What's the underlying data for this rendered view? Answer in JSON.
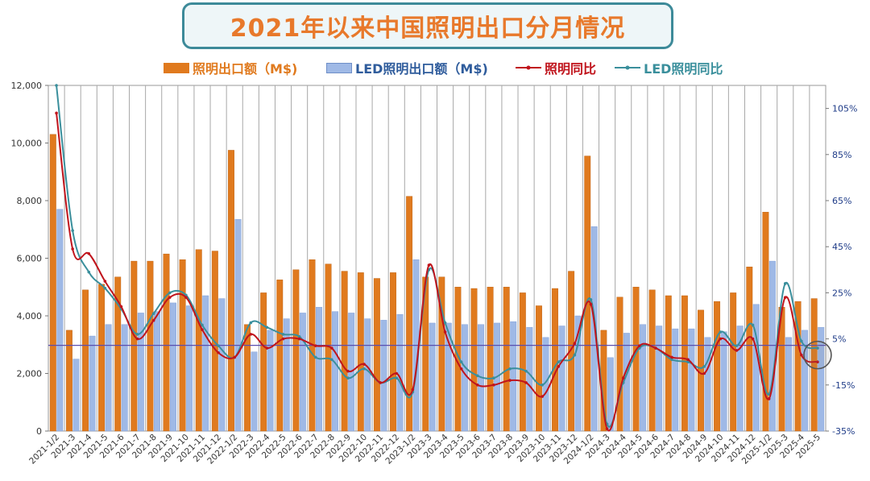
{
  "title": "2021年以来中国照明出口分月情况",
  "legend": {
    "s1": "照明出口额（M$)",
    "s2": "LED照明出口额（M$)",
    "s3": "照明同比",
    "s4": "LED照明同比"
  },
  "colors": {
    "bar1": "#e07a1e",
    "bar2": "#9fb9e6",
    "line1": "#c0141c",
    "line2": "#3a8f9c",
    "refline": "#5b4fb0",
    "title_border": "#3d8a99",
    "title_text": "#e8792b"
  },
  "chart_data": {
    "type": "bar",
    "categories": [
      "2021-1/2",
      "2021-3",
      "2021-4",
      "2021-5",
      "2021-6",
      "2021-7",
      "2021-8",
      "2021-9",
      "2021-10",
      "2021-11",
      "2021-12",
      "2022-1/2",
      "2022-3",
      "2022-4",
      "2022-5",
      "2022-6",
      "2022-7",
      "2022-8",
      "2022-9",
      "2022-10",
      "2022-11",
      "2022-12",
      "2023-1/2",
      "2023-3",
      "2023-4",
      "2023-5",
      "2023-6",
      "2023-7",
      "2023-8",
      "2023-9",
      "2023-10",
      "2023-11",
      "2023-12",
      "2024-1/2",
      "2024-3",
      "2024-4",
      "2024-5",
      "2024-6",
      "2024-7",
      "2024-8",
      "2024-9",
      "2024-10",
      "2024-11",
      "2024-12",
      "2025-1/2",
      "2025-3",
      "2025-4",
      "2025-5"
    ],
    "series": [
      {
        "name": "照明出口额（M$)",
        "type": "bar",
        "axis": "left",
        "values": [
          10300,
          3500,
          4900,
          5100,
          5350,
          5900,
          5900,
          6150,
          5950,
          6300,
          6250,
          9750,
          3700,
          4800,
          5250,
          5600,
          5950,
          5800,
          5550,
          5500,
          5300,
          5500,
          8150,
          5350,
          5350,
          5000,
          4950,
          5000,
          5000,
          4800,
          4350,
          4950,
          5550,
          9550,
          3500,
          4650,
          5000,
          4900,
          4700,
          4700,
          4200,
          4500,
          4800,
          5700,
          7600,
          4300,
          4500,
          4600
        ]
      },
      {
        "name": "LED照明出口额（M$)",
        "type": "bar",
        "axis": "right_secondary_none",
        "values": [
          7700,
          2500,
          3300,
          3700,
          3700,
          4100,
          4150,
          4450,
          4350,
          4700,
          4600,
          7350,
          2750,
          3500,
          3900,
          4100,
          4300,
          4150,
          4100,
          3900,
          3850,
          4050,
          5950,
          3750,
          3750,
          3700,
          3700,
          3750,
          3800,
          3600,
          3250,
          3650,
          4000,
          7100,
          2550,
          3400,
          3700,
          3650,
          3550,
          3550,
          3250,
          3450,
          3650,
          4400,
          5900,
          3250,
          3500,
          3600
        ]
      },
      {
        "name": "照明同比",
        "type": "line",
        "axis": "right",
        "values": [
          103,
          44,
          42,
          30,
          19,
          5,
          13,
          23,
          23,
          9,
          -1,
          -3,
          7,
          1,
          5,
          5,
          2,
          1,
          -9,
          -6,
          -14,
          -10,
          -17,
          37,
          8,
          -8,
          -15,
          -15,
          -13,
          -14,
          -20,
          -7,
          3,
          20,
          -34,
          -12,
          2,
          1,
          -3,
          -4,
          -10,
          5,
          0,
          5,
          -21,
          23,
          -2,
          -5
        ]
      },
      {
        "name": "LED照明同比",
        "type": "line",
        "axis": "right",
        "values": [
          115,
          52,
          34,
          27,
          18,
          7,
          16,
          25,
          24,
          11,
          2,
          -3,
          12,
          10,
          7,
          6,
          -3,
          -4,
          -12,
          -8,
          -14,
          -12,
          -18,
          35,
          12,
          -5,
          -11,
          -12,
          -8,
          -9,
          -15,
          -5,
          -2,
          22,
          -32,
          -14,
          1,
          1,
          -4,
          -5,
          -7,
          8,
          2,
          11,
          -19,
          29,
          4,
          1
        ]
      }
    ],
    "y_left": {
      "min": 0,
      "max": 12000,
      "ticks": [
        "0",
        "2,000",
        "4,000",
        "6,000",
        "8,000",
        "10,000",
        "12,000"
      ]
    },
    "y_right": {
      "min": -35,
      "max": 115,
      "ticks": [
        "-35%",
        "-15%",
        "5%",
        "25%",
        "45%",
        "65%",
        "85%",
        "105%"
      ]
    },
    "reference_line": 2.2,
    "grid": "vertical",
    "legend_position": "top"
  }
}
